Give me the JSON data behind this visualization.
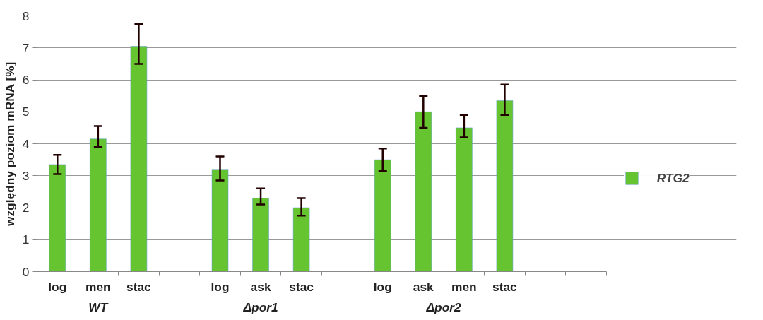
{
  "chart_data": {
    "type": "bar",
    "ylabel": "względny poziom mRNA [%]",
    "categories": [
      "log",
      "men",
      "stac",
      null,
      "log",
      "ask",
      "stac",
      null,
      "log",
      "ask",
      "men",
      "stac",
      null,
      null
    ],
    "series": [
      {
        "name": "RTG2",
        "color": "#66c430",
        "values": [
          3.35,
          4.15,
          7.05,
          null,
          3.2,
          2.3,
          2.0,
          null,
          3.5,
          5.0,
          4.5,
          5.35,
          null,
          null
        ],
        "errors": [
          [
            3.05,
            3.65
          ],
          [
            3.9,
            4.55
          ],
          [
            6.5,
            7.75
          ],
          null,
          [
            2.85,
            3.6
          ],
          [
            2.1,
            2.6
          ],
          [
            1.75,
            2.3
          ],
          null,
          [
            3.15,
            3.85
          ],
          [
            4.5,
            5.5
          ],
          [
            4.2,
            4.9
          ],
          [
            4.9,
            5.85
          ],
          null,
          null
        ]
      }
    ],
    "annotations": [
      "WT",
      "Δpor1",
      "Δpor2"
    ],
    "ylim": [
      0,
      8
    ],
    "yticks": [
      0,
      1,
      2,
      3,
      4,
      5,
      6,
      7,
      8
    ],
    "grid": "y",
    "legend": "right"
  }
}
